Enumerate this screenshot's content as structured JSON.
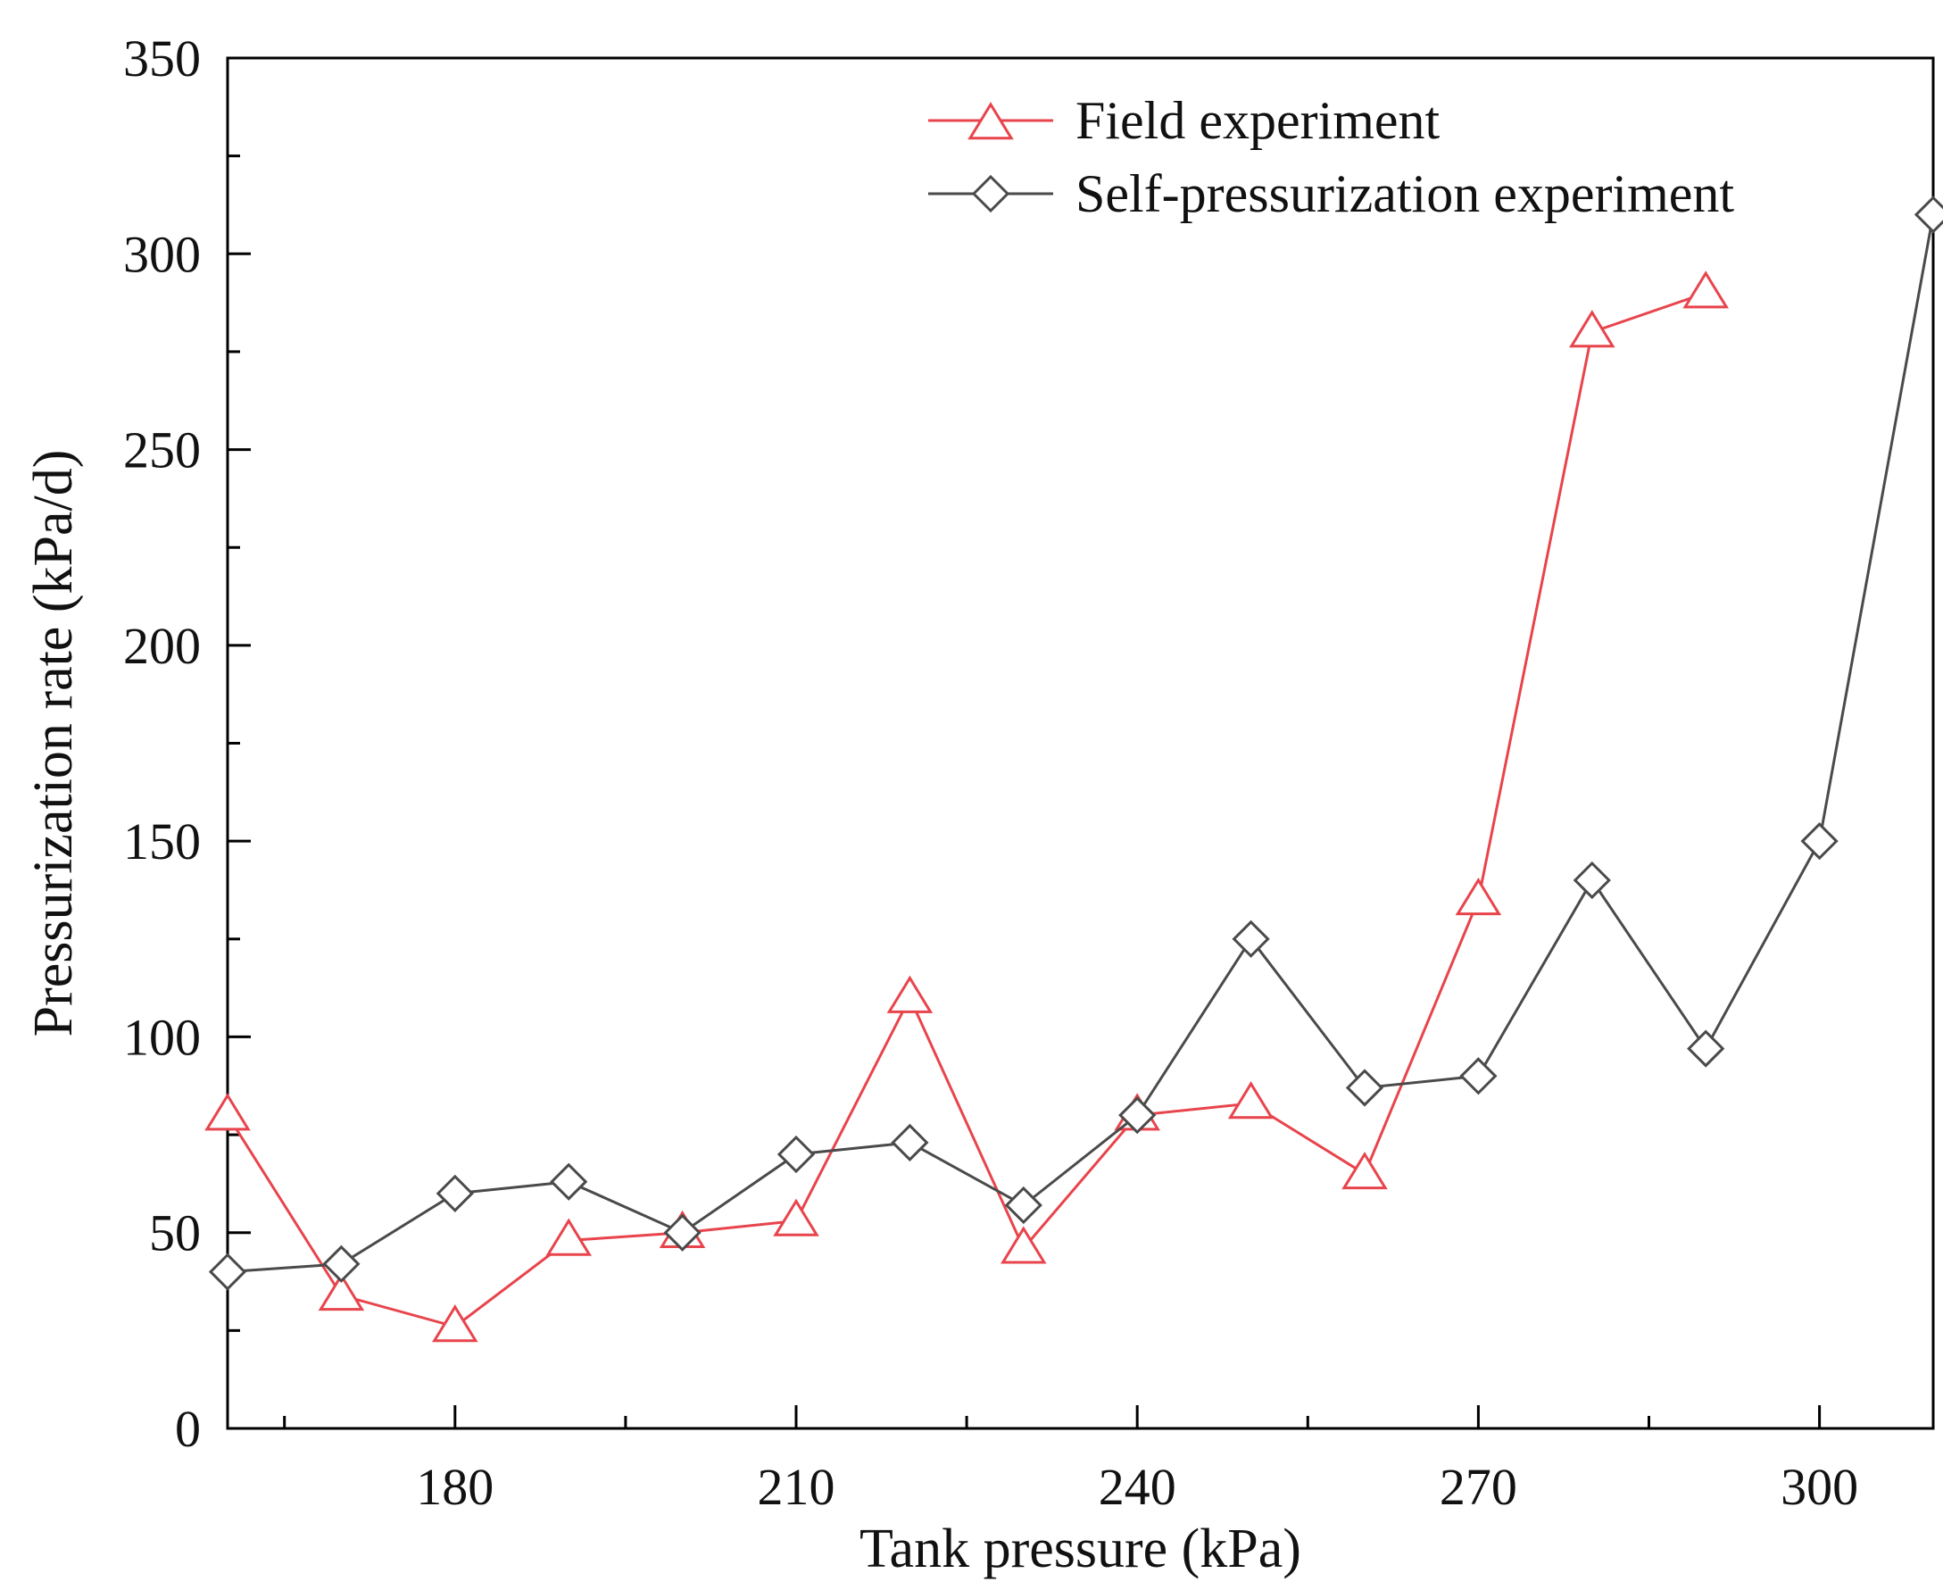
{
  "chart_data": {
    "type": "line",
    "title": "",
    "xlabel": "Tank pressure (kPa)",
    "ylabel": "Pressurization rate (kPa/d)",
    "xlim": [
      160,
      310
    ],
    "ylim": [
      0,
      350
    ],
    "xticks": [
      180,
      210,
      240,
      270,
      300
    ],
    "xticks_minor": [
      165,
      195,
      225,
      255,
      285
    ],
    "yticks": [
      0,
      50,
      100,
      150,
      200,
      250,
      300,
      350
    ],
    "yticks_minor": [
      25,
      75,
      125,
      175,
      225,
      275,
      325
    ],
    "grid": false,
    "legend_position": "top-right",
    "series": [
      {
        "name": "Field experiment",
        "color": "#e8444c",
        "marker": "triangle",
        "x": [
          160,
          170,
          180,
          190,
          200,
          210,
          220,
          230,
          240,
          250,
          260,
          270,
          280,
          290
        ],
        "y": [
          80,
          34,
          26,
          48,
          50,
          53,
          110,
          46,
          80,
          83,
          65,
          135,
          280,
          290
        ]
      },
      {
        "name": "Self-pressurization experiment",
        "color": "#4a4a4a",
        "marker": "diamond",
        "x": [
          160,
          170,
          180,
          190,
          200,
          210,
          220,
          230,
          240,
          250,
          260,
          270,
          280,
          290,
          300,
          310
        ],
        "y": [
          40,
          42,
          60,
          63,
          50,
          70,
          73,
          57,
          80,
          125,
          87,
          90,
          140,
          97,
          150,
          310
        ]
      }
    ]
  }
}
